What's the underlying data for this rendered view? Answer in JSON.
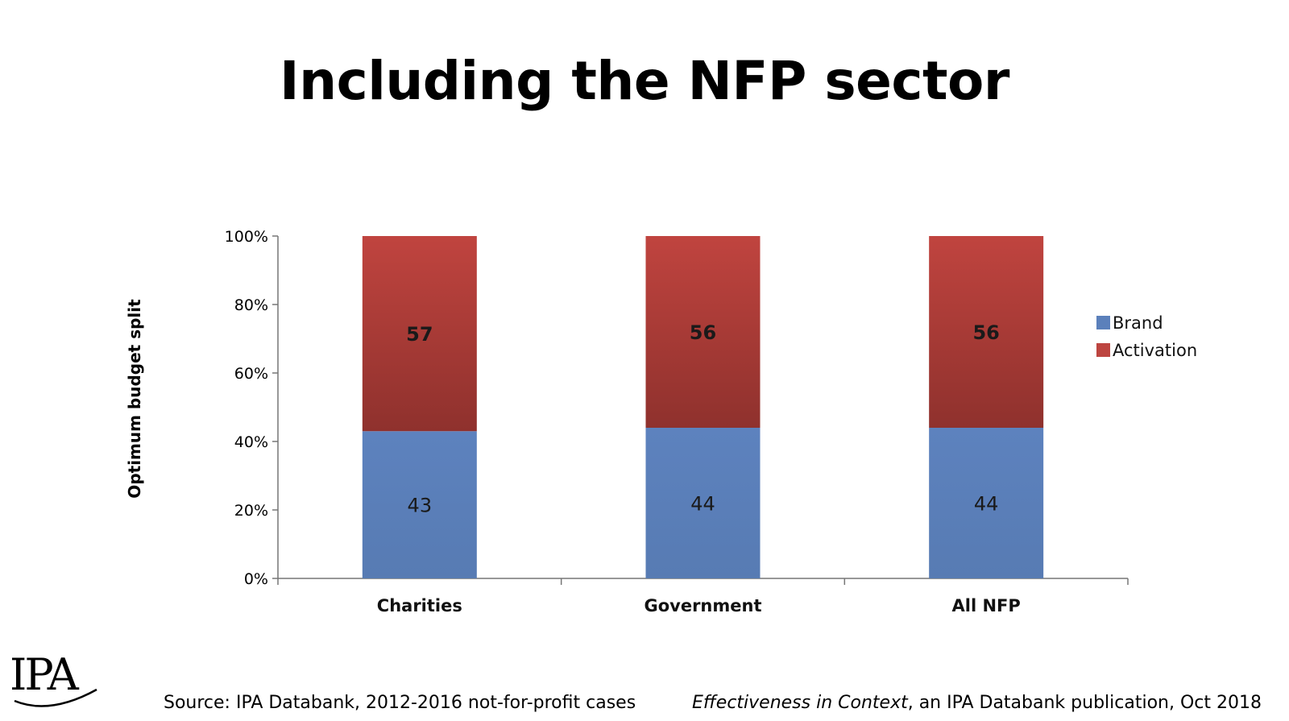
{
  "title": "Including the NFP sector",
  "chart_data": {
    "type": "bar",
    "stacked": true,
    "categories": [
      "Charities",
      "Government",
      "All NFP"
    ],
    "series": [
      {
        "name": "Brand",
        "values": [
          43,
          44,
          44
        ],
        "color": "#5b80bb"
      },
      {
        "name": "Activation",
        "values": [
          57,
          56,
          56
        ],
        "color": "#bd4540"
      }
    ],
    "data_labels": {
      "Brand": [
        "43",
        "44",
        "44"
      ],
      "Activation": [
        "57",
        "56",
        "56"
      ]
    },
    "ylabel": "Optimum budget split",
    "xlabel": "",
    "ylim": [
      0,
      100
    ],
    "yticks": [
      "0%",
      "20%",
      "40%",
      "60%",
      "80%",
      "100%"
    ],
    "grid": false,
    "legend_position": "right"
  },
  "footer": {
    "source": "Source: IPA Databank, 2012-2016 not-for-profit cases",
    "publication_title": "Effectiveness in Context",
    "publication_rest": ", an IPA Databank publication, Oct 2018"
  },
  "logo": {
    "text": "IPA"
  }
}
